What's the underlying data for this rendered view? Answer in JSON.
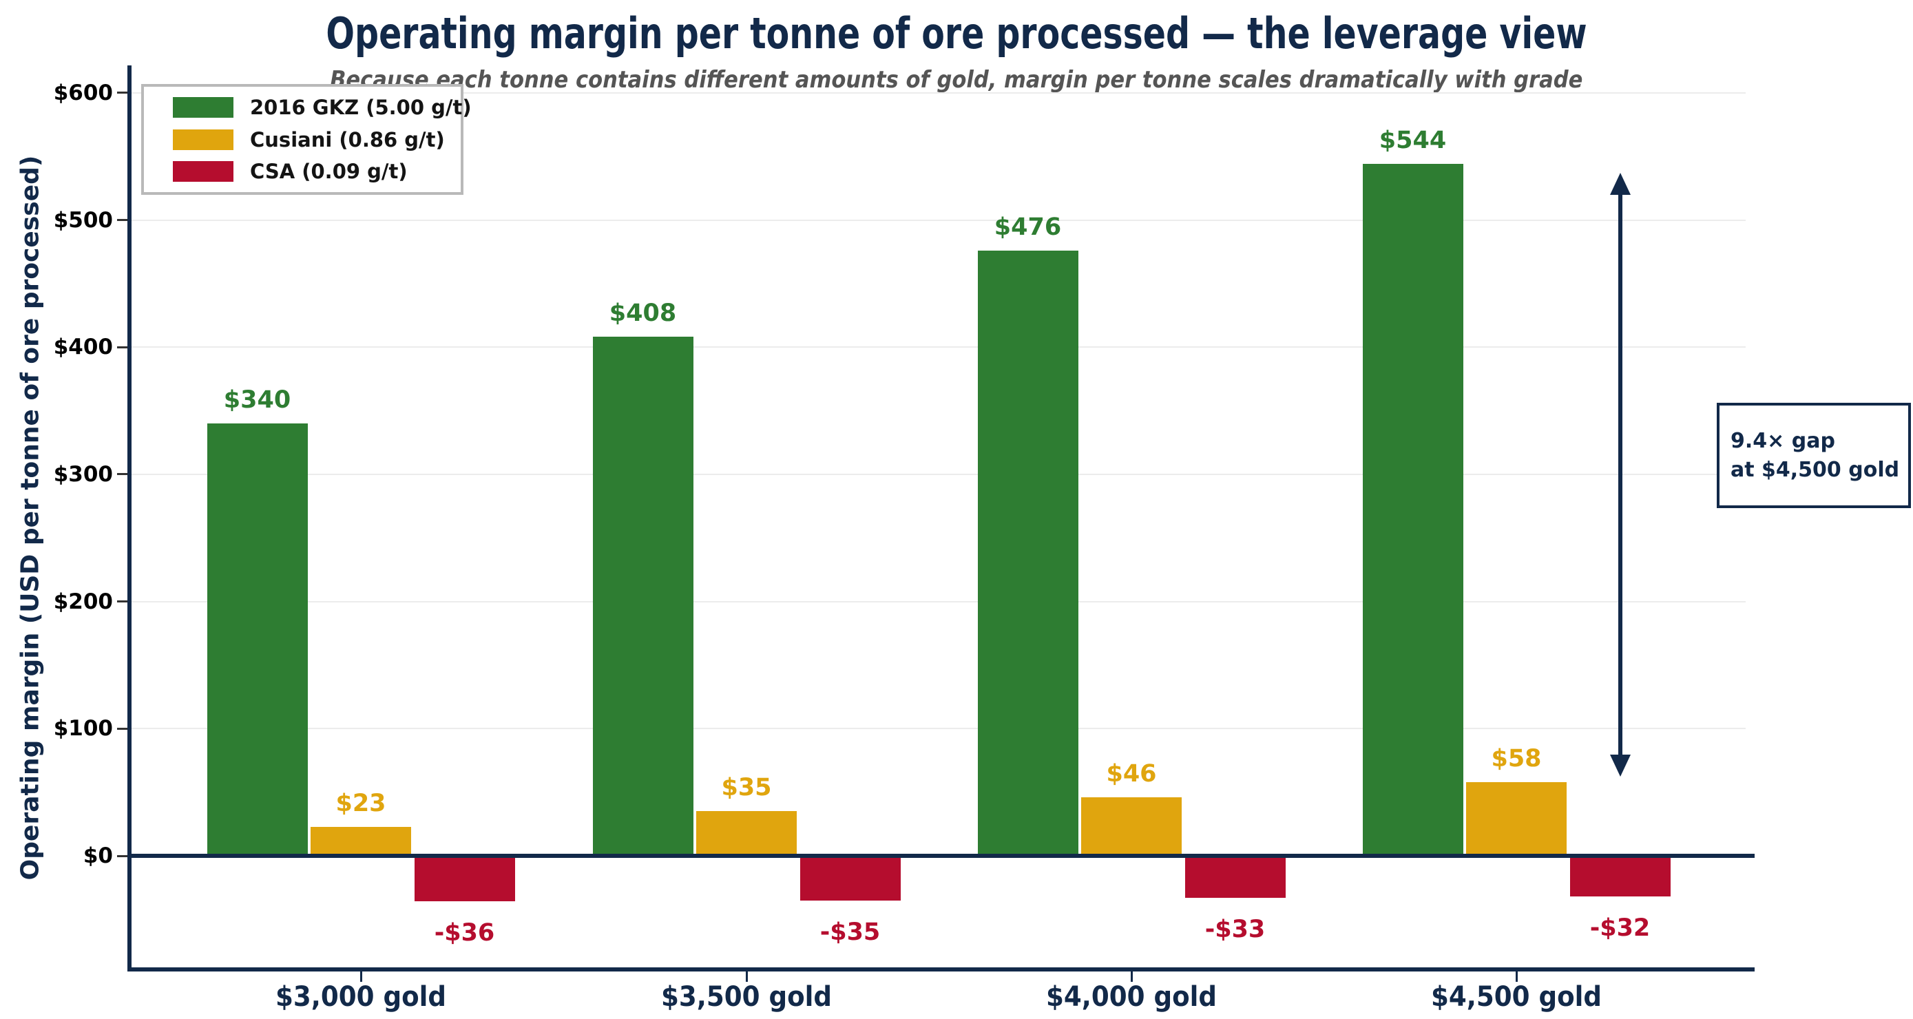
{
  "chart_data": {
    "type": "bar",
    "title": "Operating margin per tonne of ore processed — the leverage view",
    "subtitle": "Because each tonne contains different amounts of gold, margin per tonne scales dramatically with grade",
    "ylabel": "Operating margin (USD per tonne of ore processed)",
    "xlabel": "",
    "categories": [
      "$3,000 gold",
      "$3,500 gold",
      "$4,000 gold",
      "$4,500 gold"
    ],
    "series": [
      {
        "name": "2016 GKZ (5.00 g/t)",
        "color": "#2e7d32",
        "values": [
          340,
          408,
          476,
          544
        ],
        "value_labels": [
          "$340",
          "$408",
          "$476",
          "$544"
        ]
      },
      {
        "name": "Cusiani (0.86 g/t)",
        "color": "#e0a50e",
        "values": [
          23,
          35,
          46,
          58
        ],
        "value_labels": [
          "$23",
          "$35",
          "$46",
          "$58"
        ]
      },
      {
        "name": "CSA (0.09 g/t)",
        "color": "#b50d2e",
        "values": [
          -36,
          -35,
          -33,
          -32
        ],
        "value_labels": [
          "-$36",
          "-$35",
          "-$33",
          "-$32"
        ]
      }
    ],
    "y_ticks": [
      {
        "value": 0,
        "label": "$0"
      },
      {
        "value": 100,
        "label": "$100"
      },
      {
        "value": 200,
        "label": "$200"
      },
      {
        "value": 300,
        "label": "$300"
      },
      {
        "value": 400,
        "label": "$400"
      },
      {
        "value": 500,
        "label": "$500"
      },
      {
        "value": 600,
        "label": "$600"
      }
    ],
    "ylim": [
      -89,
      622
    ],
    "grid": true,
    "legend_position": "upper left",
    "annotation": {
      "line1": "9.4× gap",
      "line2": "at $4,500 gold"
    },
    "gap_arrow": {
      "top_value": 537,
      "bottom_value": 62
    }
  },
  "colors": {
    "navy": "#122949",
    "green": "#2e7d32",
    "gold": "#e0a50e",
    "crimson": "#b50d2e",
    "grid": "#ececec",
    "subtitle_gray": "#555555",
    "legend_border": "#b9b9b9"
  }
}
